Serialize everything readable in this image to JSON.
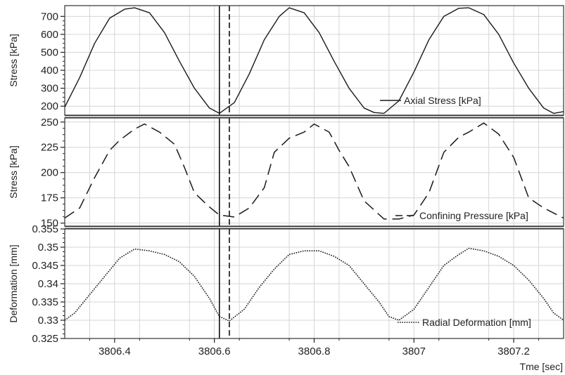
{
  "chart_data": {
    "type": "line",
    "xlabel": "Tme [sec]",
    "xlim": [
      3806.3,
      3807.3
    ],
    "xticks": [
      3806.4,
      3806.6,
      3806.8,
      3807,
      3807.2
    ],
    "xtick_labels": [
      "3806.4",
      "3806.6",
      "3806.8",
      "3807",
      "3807.2"
    ],
    "cursor_lines": [
      {
        "x": 3806.61,
        "style": "solid"
      },
      {
        "x": 3806.63,
        "style": "dashed"
      }
    ],
    "grid": true,
    "panels": [
      {
        "ylabel": "Stress [kPa]",
        "ylim": [
          150,
          760
        ],
        "yticks": [
          200,
          300,
          400,
          500,
          600,
          700
        ],
        "ytick_labels": [
          "200",
          "300",
          "400",
          "500",
          "600",
          "700"
        ],
        "legend_position": "bottom-right",
        "series": [
          {
            "name": "Axial Stress [kPa]",
            "style": "solid",
            "x": [
              3806.3,
              3806.33,
              3806.36,
              3806.39,
              3806.42,
              3806.44,
              3806.47,
              3806.5,
              3806.53,
              3806.56,
              3806.59,
              3806.61,
              3806.64,
              3806.67,
              3806.7,
              3806.73,
              3806.75,
              3806.78,
              3806.81,
              3806.84,
              3806.87,
              3806.9,
              3806.92,
              3806.94,
              3806.97,
              3807.0,
              3807.03,
              3807.06,
              3807.09,
              3807.11,
              3807.14,
              3807.17,
              3807.2,
              3807.23,
              3807.26,
              3807.28,
              3807.3
            ],
            "y": [
              195,
              360,
              550,
              690,
              740,
              748,
              720,
              610,
              450,
              300,
              190,
              160,
              220,
              380,
              570,
              700,
              748,
              720,
              610,
              450,
              300,
              190,
              165,
              160,
              230,
              390,
              570,
              700,
              745,
              748,
              710,
              600,
              440,
              300,
              190,
              160,
              170
            ]
          }
        ]
      },
      {
        "ylabel": "Stress [kPa]",
        "ylim": [
          147,
          254
        ],
        "yticks": [
          150,
          175,
          200,
          225,
          250
        ],
        "ytick_labels": [
          "150",
          "175",
          "200",
          "225",
          "250"
        ],
        "legend_position": "bottom-right",
        "series": [
          {
            "name": "Confining Pressure [kPa]",
            "style": "dashed",
            "x": [
              3806.3,
              3806.33,
              3806.36,
              3806.39,
              3806.41,
              3806.44,
              3806.46,
              3806.49,
              3806.52,
              3806.54,
              3806.56,
              3806.59,
              3806.61,
              3806.64,
              3806.67,
              3806.7,
              3806.72,
              3806.75,
              3806.78,
              3806.8,
              3806.83,
              3806.85,
              3806.87,
              3806.9,
              3806.94,
              3806.97,
              3807.0,
              3807.03,
              3807.06,
              3807.09,
              3807.11,
              3807.14,
              3807.17,
              3807.2,
              3807.23,
              3807.26,
              3807.3
            ],
            "y": [
              155,
              165,
              195,
              222,
              232,
              243,
              248,
              240,
              228,
              205,
              180,
              166,
              158,
              156,
              165,
              185,
              220,
              234,
              240,
              248,
              240,
              222,
              206,
              172,
              154,
              154,
              158,
              180,
              220,
              235,
              240,
              249,
              238,
              215,
              175,
              165,
              155
            ]
          }
        ]
      },
      {
        "ylabel": "Deformation [mm]",
        "ylim": [
          0.325,
          0.355
        ],
        "yticks": [
          0.325,
          0.33,
          0.335,
          0.34,
          0.345,
          0.35,
          0.355
        ],
        "ytick_labels": [
          "0.325",
          "0.33",
          "0.335",
          "0.34",
          "0.345",
          "0.35",
          "0.355"
        ],
        "legend_position": "bottom-right",
        "series": [
          {
            "name": "Radial Deformation [mm]",
            "style": "dotted",
            "x": [
              3806.3,
              3806.32,
              3806.35,
              3806.38,
              3806.41,
              3806.44,
              3806.47,
              3806.5,
              3806.53,
              3806.56,
              3806.59,
              3806.61,
              3806.63,
              3806.66,
              3806.69,
              3806.72,
              3806.75,
              3806.78,
              3806.81,
              3806.84,
              3806.87,
              3806.9,
              3806.93,
              3806.95,
              3806.97,
              3807.0,
              3807.03,
              3807.06,
              3807.09,
              3807.11,
              3807.14,
              3807.17,
              3807.2,
              3807.23,
              3807.26,
              3807.28,
              3807.3
            ],
            "y": [
              0.33,
              0.332,
              0.337,
              0.342,
              0.347,
              0.3495,
              0.349,
              0.348,
              0.346,
              0.342,
              0.336,
              0.331,
              0.3298,
              0.333,
              0.339,
              0.344,
              0.348,
              0.349,
              0.349,
              0.3475,
              0.345,
              0.34,
              0.335,
              0.331,
              0.33,
              0.333,
              0.339,
              0.345,
              0.348,
              0.3497,
              0.349,
              0.3475,
              0.345,
              0.341,
              0.336,
              0.332,
              0.33
            ]
          }
        ]
      }
    ]
  }
}
